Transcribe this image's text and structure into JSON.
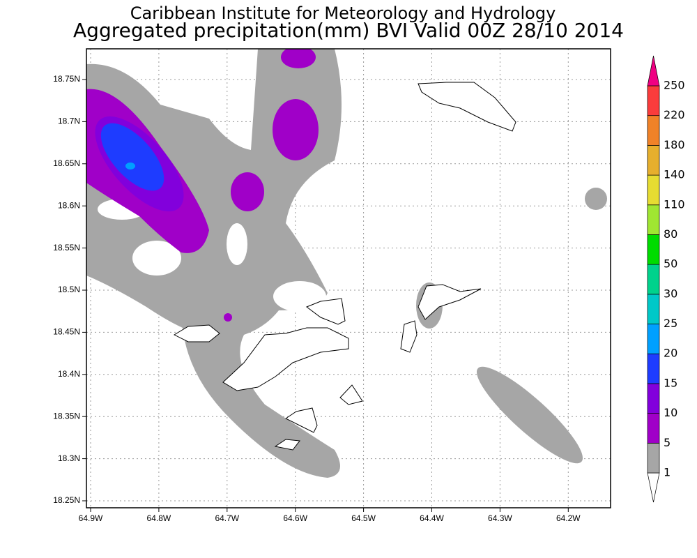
{
  "header": {
    "title": "Caribbean Institute for Meteorology and Hydrology",
    "subtitle": "Aggregated precipitation(mm) BVI Valid 00Z 28/10 2014"
  },
  "map": {
    "lat_labels": [
      "18.75N",
      "18.7N",
      "18.65N",
      "18.6N",
      "18.55N",
      "18.5N",
      "18.45N",
      "18.4N",
      "18.35N",
      "18.3N",
      "18.25N"
    ],
    "lon_labels": [
      "64.9W",
      "64.8W",
      "64.7W",
      "64.6W",
      "64.5W",
      "64.4W",
      "64.3W",
      "64.2W"
    ]
  },
  "colorbar": {
    "levels": [
      1,
      5,
      10,
      15,
      20,
      25,
      30,
      50,
      80,
      110,
      140,
      180,
      220,
      250
    ],
    "colors": [
      "#ffffff",
      "#a6a6a6",
      "#a000c8",
      "#8200dc",
      "#1e3cff",
      "#00a0ff",
      "#00c8c8",
      "#00d28c",
      "#00dc00",
      "#a0e632",
      "#e6dc32",
      "#e6af2d",
      "#f08228",
      "#fa3c3c",
      "#f00082"
    ]
  }
}
